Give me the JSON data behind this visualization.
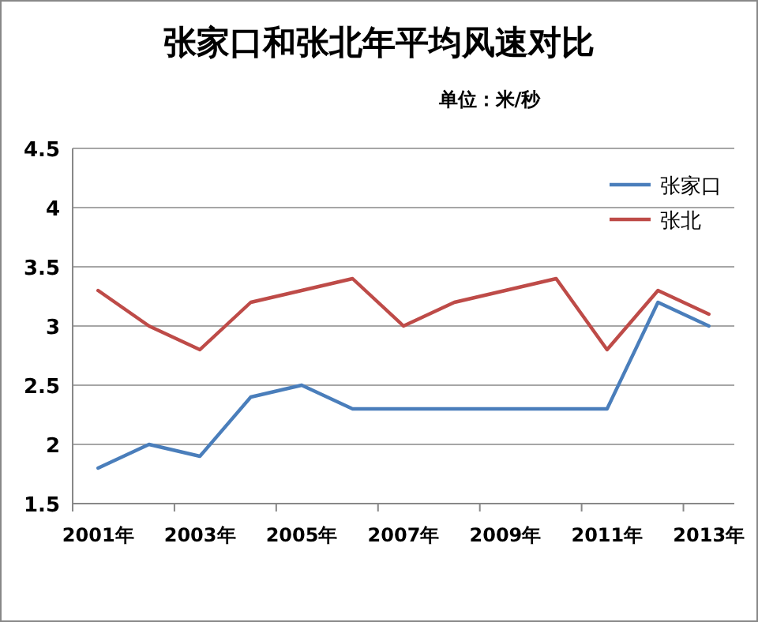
{
  "chart_data": {
    "type": "line",
    "title": "张家口和张北年平均风速对比",
    "subtitle": "单位：米/秒",
    "categories": [
      "2001年",
      null,
      "2003年",
      null,
      "2005年",
      null,
      "2007年",
      null,
      "2009年",
      null,
      "2011年",
      null,
      "2013年"
    ],
    "series": [
      {
        "name": "张家口",
        "color": "#4a7ebb",
        "values": [
          1.8,
          2.0,
          1.9,
          2.4,
          2.5,
          2.3,
          2.3,
          2.3,
          2.3,
          2.3,
          2.3,
          3.2,
          3.0
        ]
      },
      {
        "name": "张北",
        "color": "#be4b48",
        "values": [
          3.3,
          3.0,
          2.8,
          3.2,
          3.3,
          3.4,
          3.0,
          3.2,
          3.3,
          3.4,
          2.8,
          3.3,
          3.1
        ]
      }
    ],
    "ylim": [
      1.5,
      4.5
    ],
    "yticks": [
      1.5,
      2,
      2.5,
      3,
      3.5,
      4,
      4.5
    ],
    "grid": "y",
    "legend": "top right",
    "marker": "none",
    "line_style": "solid"
  }
}
